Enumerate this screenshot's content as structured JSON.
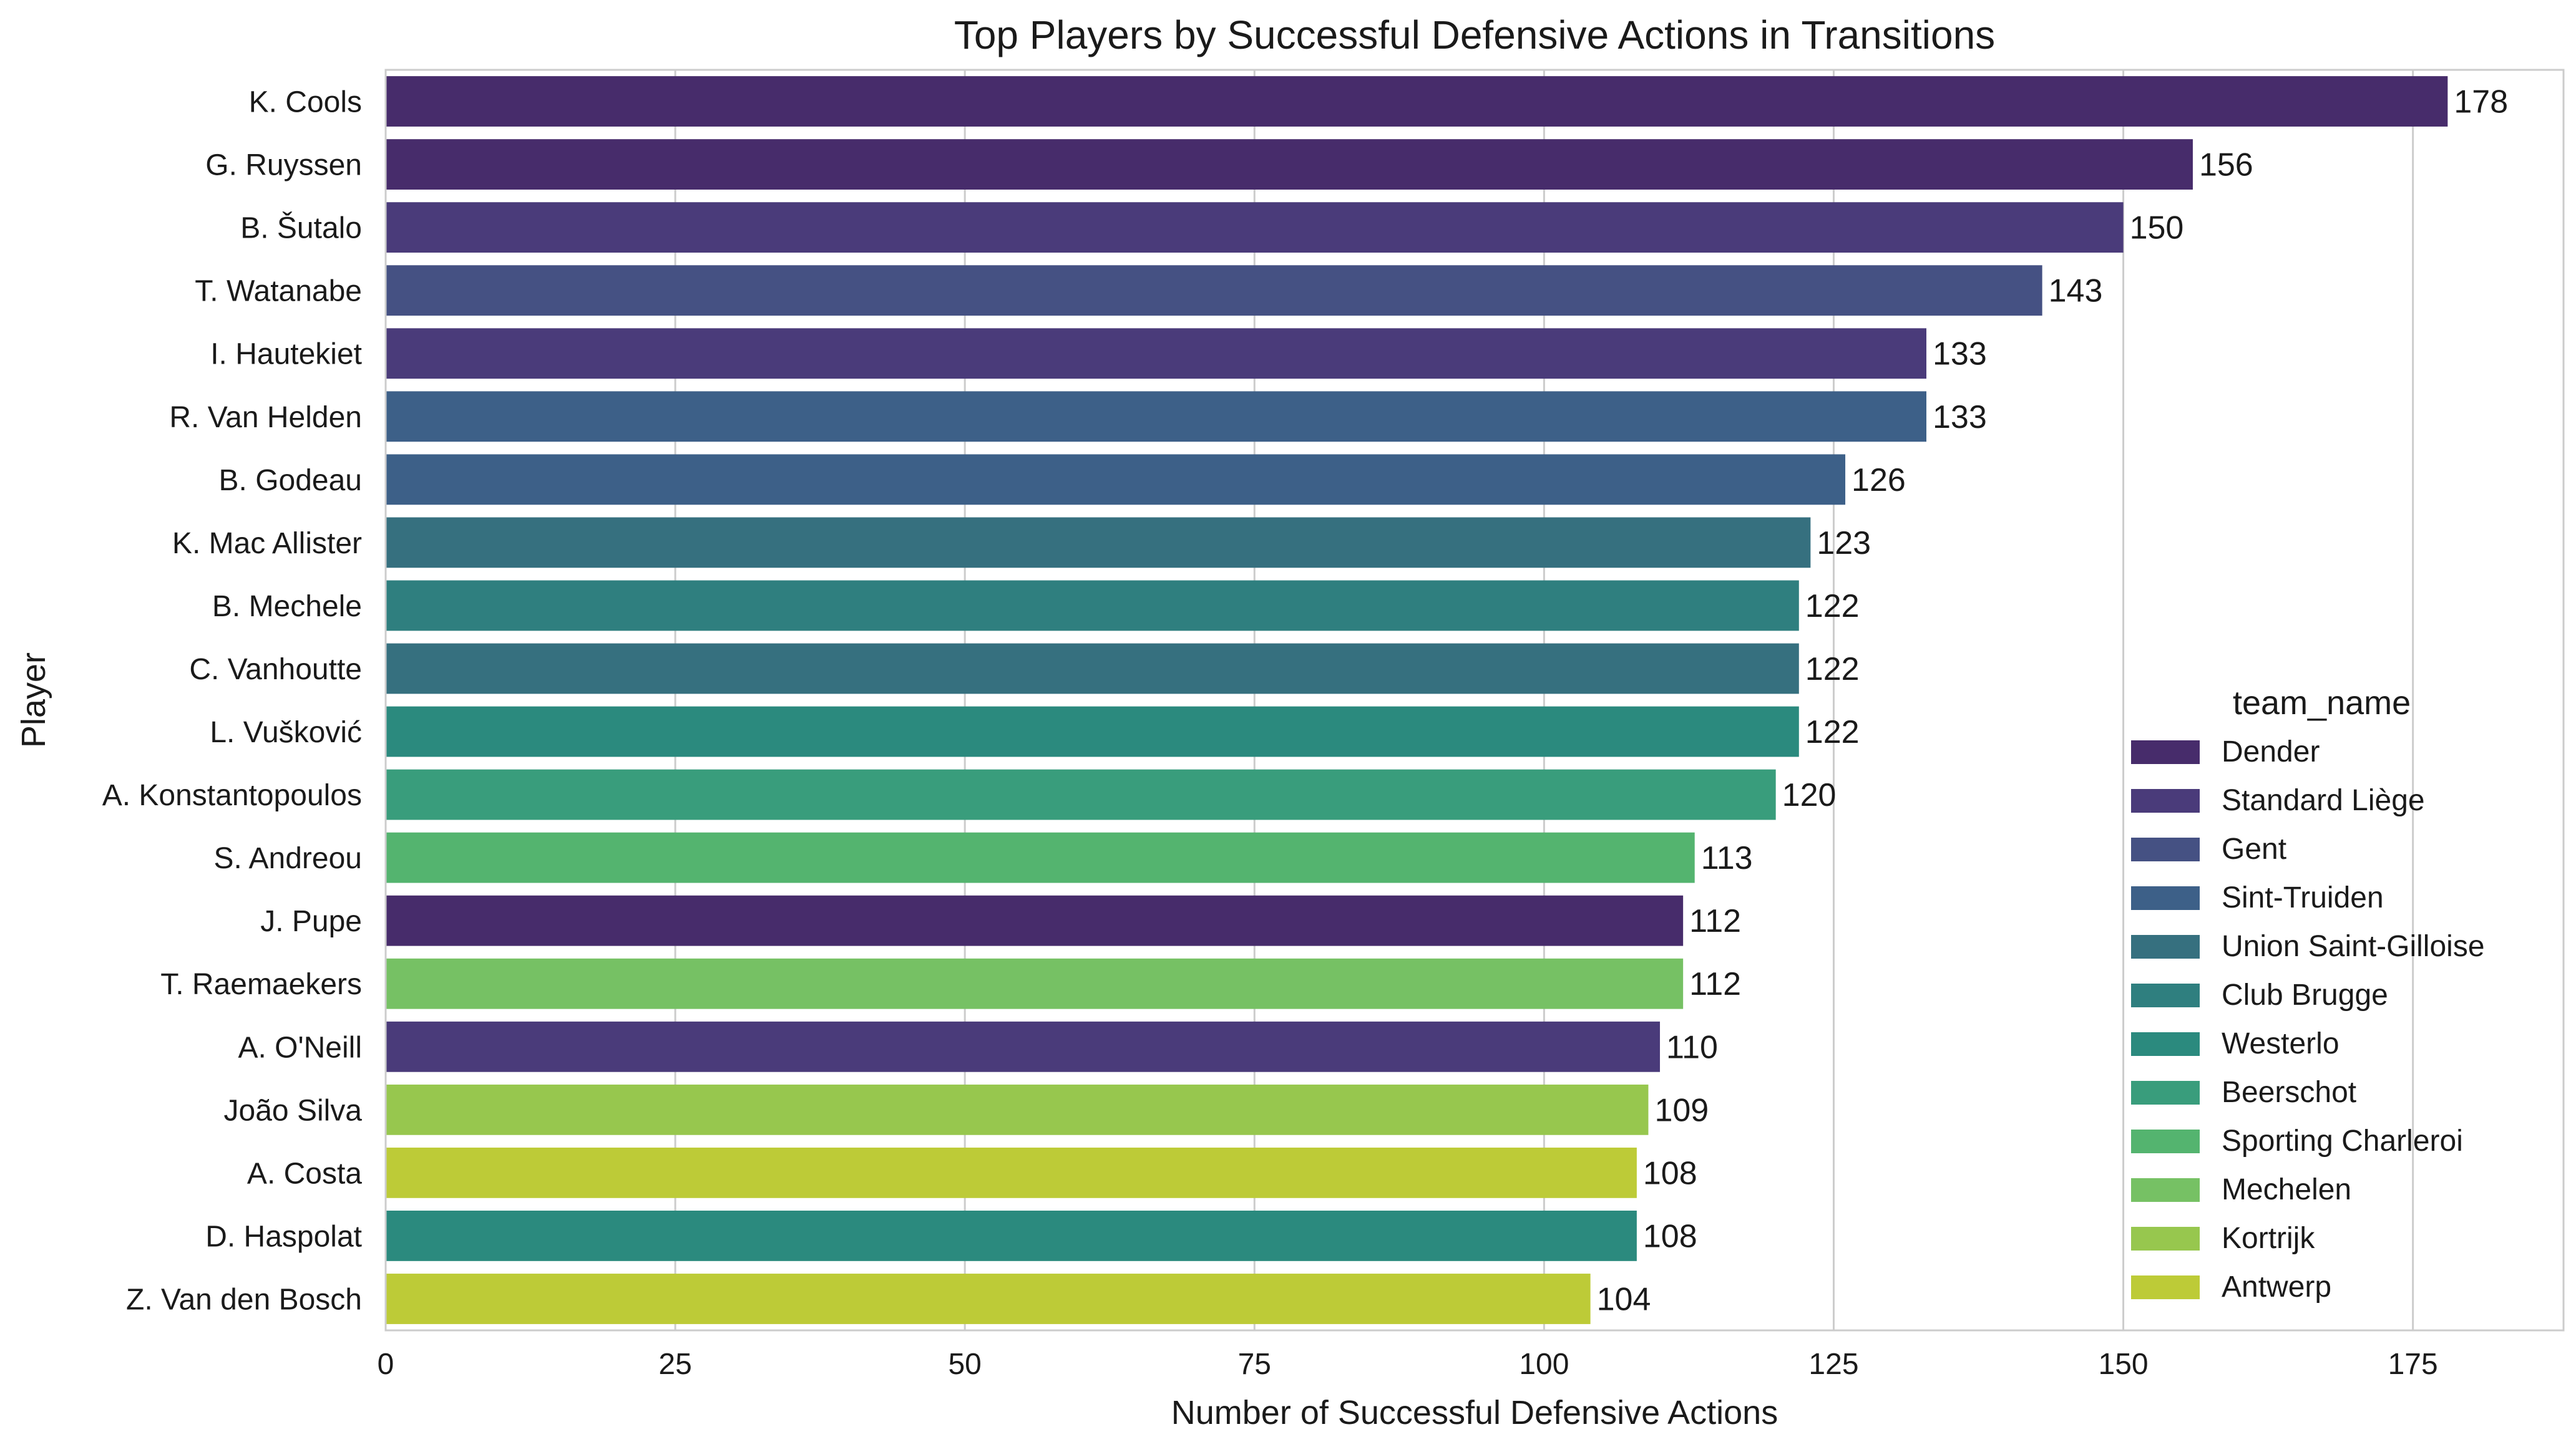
{
  "chart_data": {
    "type": "bar",
    "orientation": "horizontal",
    "title": "Top Players by Successful Defensive Actions in Transitions",
    "xlabel": "Number of Successful Defensive Actions",
    "ylabel": "Player",
    "xlim": [
      0,
      188
    ],
    "xticks": [
      0,
      25,
      50,
      75,
      100,
      125,
      150,
      175
    ],
    "grid": true,
    "legend": {
      "title": "team_name",
      "position": "lower-right",
      "items": [
        {
          "name": "Dender",
          "color": "#472c6b"
        },
        {
          "name": "Standard Liège",
          "color": "#4a3b7a"
        },
        {
          "name": "Gent",
          "color": "#455183"
        },
        {
          "name": "Sint-Truiden",
          "color": "#3d6088"
        },
        {
          "name": "Union Saint-Gilloise",
          "color": "#36707f"
        },
        {
          "name": "Club Brugge",
          "color": "#2f7f7f"
        },
        {
          "name": "Westerlo",
          "color": "#2b8a7e"
        },
        {
          "name": "Beerschot",
          "color": "#399d7c"
        },
        {
          "name": "Sporting Charleroi",
          "color": "#54b46f"
        },
        {
          "name": "Mechelen",
          "color": "#76c164"
        },
        {
          "name": "Kortrijk",
          "color": "#97c74e"
        },
        {
          "name": "Antwerp",
          "color": "#bdcb37"
        }
      ]
    },
    "bars": [
      {
        "player": "K. Cools",
        "value": 178,
        "team": "Dender",
        "label": "178"
      },
      {
        "player": "G. Ruyssen",
        "value": 156,
        "team": "Dender",
        "label": "156"
      },
      {
        "player": "B. Šutalo",
        "value": 150,
        "team": "Standard Liège",
        "label": "150"
      },
      {
        "player": "T. Watanabe",
        "value": 143,
        "team": "Gent",
        "label": "143"
      },
      {
        "player": "I. Hautekiet",
        "value": 133,
        "team": "Standard Liège",
        "label": "133"
      },
      {
        "player": "R. Van Helden",
        "value": 133,
        "team": "Sint-Truiden",
        "label": "133"
      },
      {
        "player": "B. Godeau",
        "value": 126,
        "team": "Sint-Truiden",
        "label": "126"
      },
      {
        "player": "K. Mac Allister",
        "value": 123,
        "team": "Union Saint-Gilloise",
        "label": "123"
      },
      {
        "player": "B. Mechele",
        "value": 122,
        "team": "Club Brugge",
        "label": "122"
      },
      {
        "player": "C. Vanhoutte",
        "value": 122,
        "team": "Union Saint-Gilloise",
        "label": "122"
      },
      {
        "player": "L. Vušković",
        "value": 122,
        "team": "Westerlo",
        "label": "122"
      },
      {
        "player": "A. Konstantopoulos",
        "value": 120,
        "team": "Beerschot",
        "label": "120"
      },
      {
        "player": "S. Andreou",
        "value": 113,
        "team": "Sporting Charleroi",
        "label": "113"
      },
      {
        "player": "J. Pupe",
        "value": 112,
        "team": "Dender",
        "label": "112"
      },
      {
        "player": "T. Raemaekers",
        "value": 112,
        "team": "Mechelen",
        "label": "112"
      },
      {
        "player": "A. O'Neill",
        "value": 110,
        "team": "Standard Liège",
        "label": "110"
      },
      {
        "player": "João Silva",
        "value": 109,
        "team": "Kortrijk",
        "label": "109"
      },
      {
        "player": "A. Costa",
        "value": 108,
        "team": "Antwerp",
        "label": "108"
      },
      {
        "player": "D. Haspolat",
        "value": 108,
        "team": "Westerlo",
        "label": "108"
      },
      {
        "player": "Z. Van den Bosch",
        "value": 104,
        "team": "Antwerp",
        "label": "104"
      }
    ]
  }
}
